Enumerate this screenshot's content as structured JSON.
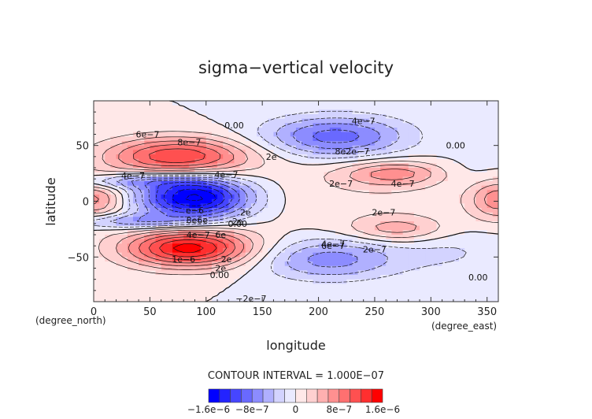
{
  "chart_data": {
    "type": "heatmap",
    "title": "sigma−vertical velocity",
    "xlabel": "longitude",
    "ylabel": "latitude",
    "x_unit": "(degree_east)",
    "y_unit": "(degree_north)",
    "xlim": [
      0,
      360
    ],
    "ylim": [
      -90,
      90
    ],
    "x_ticks": [
      "0",
      "50",
      "100",
      "150",
      "200",
      "250",
      "300",
      "350"
    ],
    "y_ticks": [
      "50",
      "0",
      "−50"
    ],
    "contour_interval_text": "CONTOUR INTERVAL = 1.000E−07",
    "colorbar_labels": [
      "−1.6e−6",
      "−8e−7",
      "0",
      "8e−7",
      "1.6e−6"
    ],
    "colorbar_levels": [
      -1.6e-06,
      -1.4e-06,
      -1.2e-06,
      -1e-06,
      -8e-07,
      -6e-07,
      -4e-07,
      -2e-07,
      0,
      2e-07,
      4e-07,
      6e-07,
      8e-07,
      1e-06,
      1.2e-06,
      1.4e-06,
      1.6e-06
    ],
    "colors": {
      "neg": [
        "#0000ff",
        "#2323ff",
        "#4646ff",
        "#6969ff",
        "#8c8cff",
        "#b0b0ff",
        "#d3d3ff",
        "#eaeaff"
      ],
      "zero": "#ffffff",
      "pos": [
        "#ffe8e8",
        "#ffd0d0",
        "#ffb0b0",
        "#ff9090",
        "#ff7070",
        "#ff5050",
        "#ff2f2f",
        "#ff0000"
      ]
    },
    "features": [
      {
        "name": "positive-max-north",
        "lon": 75,
        "lat": 40,
        "value": 1.2e-06,
        "sx": 45,
        "sy": 12
      },
      {
        "name": "positive-max-south",
        "lon": 85,
        "lat": -42,
        "value": 1.5e-06,
        "sx": 40,
        "sy": 12
      },
      {
        "name": "negative-min-equator",
        "lon": 90,
        "lat": 3,
        "value": -1.7e-06,
        "sx": 35,
        "sy": 13
      },
      {
        "name": "negative-north",
        "lon": 215,
        "lat": 58,
        "value": -9e-07,
        "sx": 45,
        "sy": 13
      },
      {
        "name": "negative-south",
        "lon": 210,
        "lat": -52,
        "value": -7e-07,
        "sx": 45,
        "sy": 13
      },
      {
        "name": "positive-west-equator",
        "lon": 0,
        "lat": 2,
        "value": 7e-07,
        "sx": 20,
        "sy": 13
      },
      {
        "name": "positive-east-equator",
        "lon": 360,
        "lat": 2,
        "value": 7e-07,
        "sx": 18,
        "sy": 13
      },
      {
        "name": "positive-tongue-north",
        "lon": 270,
        "lat": 25,
        "value": 7e-07,
        "sx": 35,
        "sy": 8
      },
      {
        "name": "positive-tongue-south",
        "lon": 270,
        "lat": -25,
        "value": 5e-07,
        "sx": 30,
        "sy": 8
      },
      {
        "name": "positive-band-mid",
        "lon": 230,
        "lat": 5,
        "value": 1.5e-07,
        "sx": 90,
        "sy": 20
      },
      {
        "name": "negative-lane-north",
        "lon": 30,
        "lat": 18,
        "value": -6e-07,
        "sx": 45,
        "sy": 5
      },
      {
        "name": "negative-lane-south",
        "lon": 30,
        "lat": -18,
        "value": -6e-07,
        "sx": 45,
        "sy": 5
      },
      {
        "name": "negative-east-north",
        "lon": 330,
        "lat": 25,
        "value": -2e-07,
        "sx": 35,
        "sy": 10
      },
      {
        "name": "negative-east-south",
        "lon": 320,
        "lat": -45,
        "value": -2e-07,
        "sx": 35,
        "sy": 14
      }
    ],
    "contour_labels": [
      {
        "text": "0.00",
        "lon": 125,
        "lat": 68
      },
      {
        "text": "6e−7",
        "lon": 48,
        "lat": 60
      },
      {
        "text": "8e−7",
        "lon": 85,
        "lat": 53
      },
      {
        "text": "2e",
        "lon": 158,
        "lat": 40
      },
      {
        "text": "4e−7",
        "lon": 240,
        "lat": 72
      },
      {
        "text": "8e2e−7",
        "lon": 230,
        "lat": 45
      },
      {
        "text": "0.00",
        "lon": 322,
        "lat": 50
      },
      {
        "text": "4e−7",
        "lon": 35,
        "lat": 23
      },
      {
        "text": "4e−7",
        "lon": 118,
        "lat": 24
      },
      {
        "text": "2e−7",
        "lon": 220,
        "lat": 16
      },
      {
        "text": "4e−7",
        "lon": 275,
        "lat": 16
      },
      {
        "text": "e−6",
        "lon": 90,
        "lat": -8
      },
      {
        "text": "2e",
        "lon": 135,
        "lat": -10
      },
      {
        "text": "8e6e",
        "lon": 92,
        "lat": -17
      },
      {
        "text": "2e",
        "lon": 128,
        "lat": -18
      },
      {
        "text": "0.00",
        "lon": 128,
        "lat": -20
      },
      {
        "text": "2e−7",
        "lon": 258,
        "lat": -10
      },
      {
        "text": "4e−7",
        "lon": 93,
        "lat": -30
      },
      {
        "text": "6e",
        "lon": 113,
        "lat": -30
      },
      {
        "text": "4e−7",
        "lon": 213,
        "lat": -38
      },
      {
        "text": "6e−7",
        "lon": 213,
        "lat": -40
      },
      {
        "text": "2e−7",
        "lon": 250,
        "lat": -43
      },
      {
        "text": "1e−6",
        "lon": 80,
        "lat": -52
      },
      {
        "text": "2e",
        "lon": 118,
        "lat": -52
      },
      {
        "text": "2e",
        "lon": 113,
        "lat": -60
      },
      {
        "text": "0.00",
        "lon": 112,
        "lat": -66
      },
      {
        "text": "0.00",
        "lon": 342,
        "lat": -68
      },
      {
        "text": "−2e−7",
        "lon": 140,
        "lat": -87
      }
    ]
  }
}
